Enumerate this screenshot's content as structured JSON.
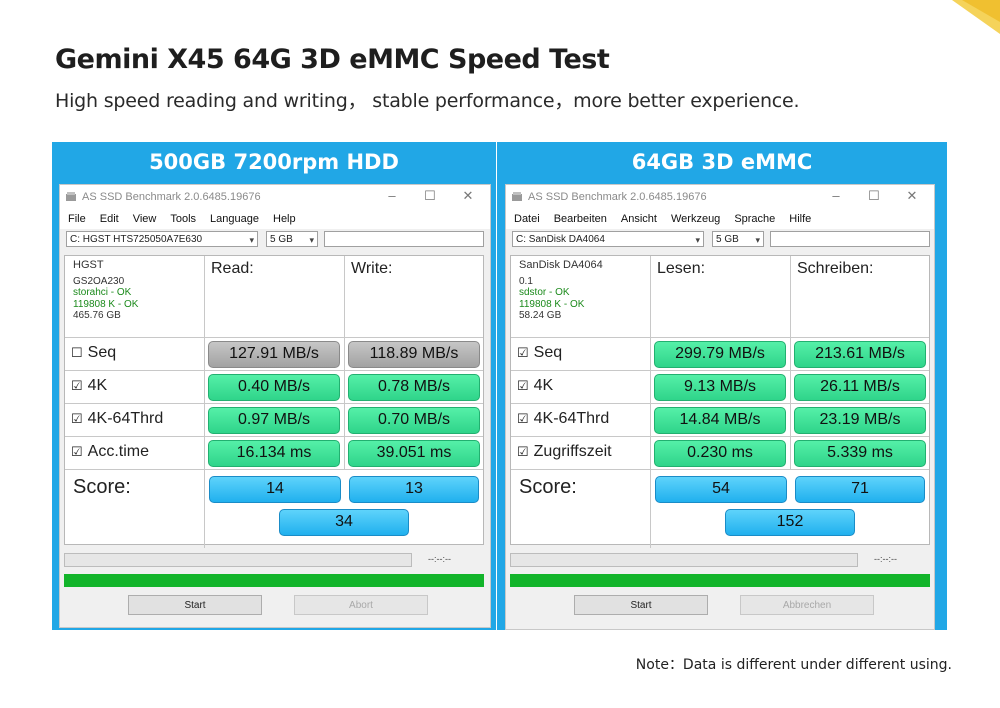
{
  "page": {
    "title": "Gemini X45 64G 3D eMMC Speed Test",
    "subtitle": "High speed reading and writing，  stable performance，more better experience.",
    "note": "Note：Data is different under different using."
  },
  "colors": {
    "panel": "#21a7e6",
    "green": "#2fd48a",
    "gray": "#a2a2a2",
    "blue": "#20b0ee",
    "bar": "#12b42a"
  },
  "panels": [
    {
      "header": "500GB 7200rpm  HDD",
      "window_title": "AS SSD Benchmark 2.0.6485.19676",
      "menu": [
        "File",
        "Edit",
        "View",
        "Tools",
        "Language",
        "Help"
      ],
      "drive": "C: HGST HTS725050A7E630",
      "size": "5 GB",
      "info": [
        "HGST",
        "GS2OA230",
        "storahci - OK",
        "119808 K - OK",
        "465.76 GB"
      ],
      "col_read": "Read:",
      "col_write": "Write:",
      "rows": [
        {
          "check": "☐",
          "label": "Seq",
          "read": "127.91 MB/s",
          "write": "118.89 MB/s",
          "style": "gray"
        },
        {
          "check": "☑",
          "label": "4K",
          "read": "0.40 MB/s",
          "write": "0.78 MB/s",
          "style": "green"
        },
        {
          "check": "☑",
          "label": "4K-64Thrd",
          "read": "0.97 MB/s",
          "write": "0.70 MB/s",
          "style": "green"
        },
        {
          "check": "☑",
          "label": "Acc.time",
          "read": "16.134 ms",
          "write": "39.051 ms",
          "style": "green"
        }
      ],
      "score_label": "Score:",
      "score_read": "14",
      "score_write": "13",
      "score_total": "34",
      "timer": "--:--:--",
      "start": "Start",
      "abort": "Abort"
    },
    {
      "header": "64GB 3D eMMC",
      "window_title": "AS SSD Benchmark 2.0.6485.19676",
      "menu": [
        "Datei",
        "Bearbeiten",
        "Ansicht",
        "Werkzeug",
        "Sprache",
        "Hilfe"
      ],
      "drive": "C: SanDisk DA4064",
      "size": "5 GB",
      "info": [
        "SanDisk DA4064",
        "0.1",
        "sdstor - OK",
        "119808 K - OK",
        "58.24 GB"
      ],
      "col_read": "Lesen:",
      "col_write": "Schreiben:",
      "rows": [
        {
          "check": "☑",
          "label": "Seq",
          "read": "299.79 MB/s",
          "write": "213.61 MB/s",
          "style": "green"
        },
        {
          "check": "☑",
          "label": "4K",
          "read": "9.13 MB/s",
          "write": "26.11 MB/s",
          "style": "green"
        },
        {
          "check": "☑",
          "label": "4K-64Thrd",
          "read": "14.84 MB/s",
          "write": "23.19 MB/s",
          "style": "green"
        },
        {
          "check": "☑",
          "label": "Zugriffszeit",
          "read": "0.230 ms",
          "write": "5.339 ms",
          "style": "green"
        }
      ],
      "score_label": "Score:",
      "score_read": "54",
      "score_write": "71",
      "score_total": "152",
      "timer": "--:--:--",
      "start": "Start",
      "abort": "Abbrechen"
    }
  ]
}
